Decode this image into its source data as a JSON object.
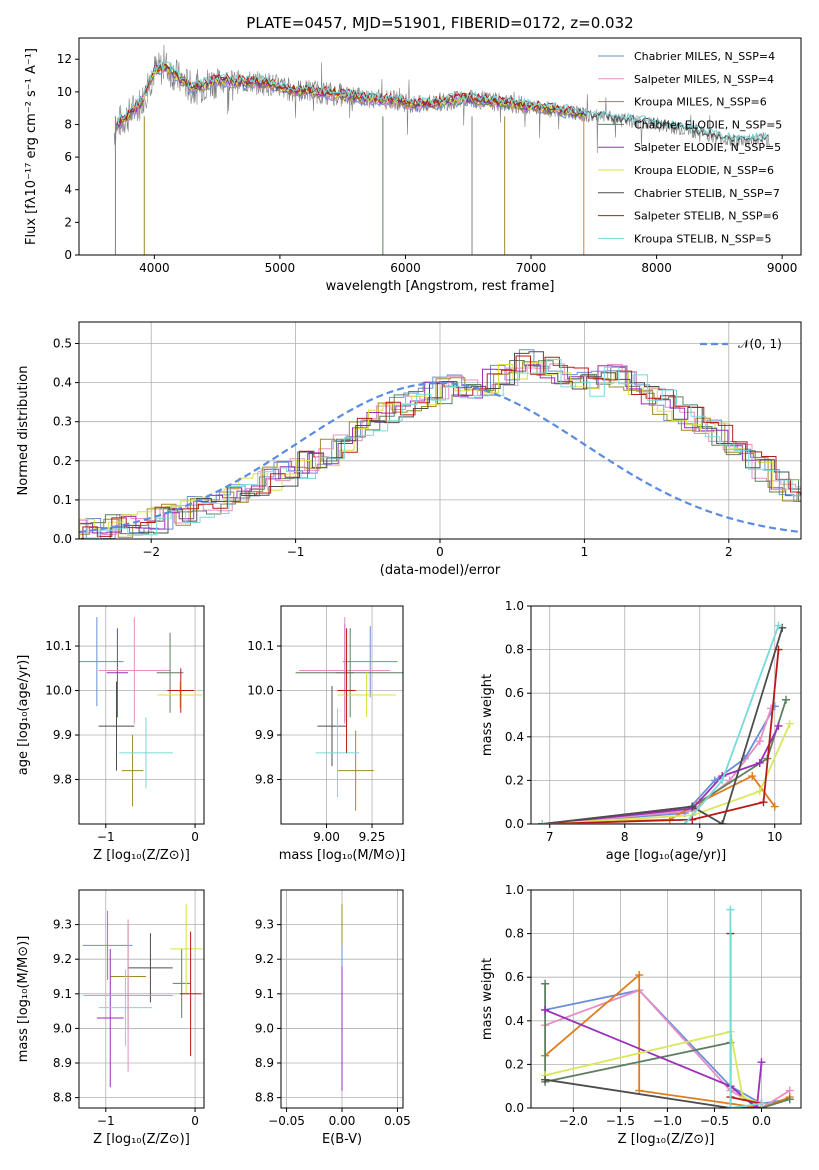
{
  "colors": [
    "#6a8fd8",
    "#e68fc4",
    "#a0892a",
    "#5e8060",
    "#9a2fb8",
    "#d9e040",
    "#4d4d4d",
    "#b81a1a",
    "#78dada"
  ],
  "chart_data": [
    {
      "id": "spectrum",
      "type": "line",
      "title": "PLATE=0457, MJD=51901, FIBERID=0172, z=0.032",
      "xlabel": "wavelength [Angstrom, rest frame]",
      "ylabel": "Flux [fλ10⁻¹⁷ erg cm⁻² s⁻¹ A⁻¹]",
      "xlim": [
        3400,
        9150
      ],
      "ylim": [
        0,
        13.3
      ],
      "xticks": [
        "4000",
        "5000",
        "6000",
        "7000",
        "8000",
        "9000"
      ],
      "yticks": [
        "0",
        "2",
        "4",
        "6",
        "8",
        "10",
        "12"
      ],
      "legend_position": "top-right",
      "series": [
        {
          "name": "Chabrier MILES, N_SSP=4"
        },
        {
          "name": "Salpeter MILES, N_SSP=4"
        },
        {
          "name": "Kroupa MILES, N_SSP=6"
        },
        {
          "name": "Chabrier ELODIE, N_SSP=5"
        },
        {
          "name": "Salpeter ELODIE, N_SSP=5"
        },
        {
          "name": "Kroupa ELODIE, N_SSP=6"
        },
        {
          "name": "Chabrier STELIB, N_SSP=7"
        },
        {
          "name": "Salpeter STELIB, N_SSP=6"
        },
        {
          "name": "Kroupa STELIB, N_SSP=5"
        }
      ],
      "data_spectrum": {
        "x": [
          3680,
          3700,
          3800,
          3900,
          4000,
          4100,
          4200,
          4300,
          4500,
          4700,
          4900,
          5100,
          5300,
          5500,
          5700,
          5900,
          6100,
          6300,
          6500,
          6700,
          6900,
          7100,
          7300,
          7420
        ],
        "y": [
          7.5,
          8.0,
          8.6,
          9.4,
          11.3,
          11.5,
          10.8,
          10.2,
          10.7,
          10.6,
          10.5,
          10.1,
          10.0,
          9.8,
          9.6,
          9.5,
          9.2,
          9.4,
          9.6,
          9.4,
          9.2,
          9.0,
          8.8,
          8.6
        ]
      },
      "model_end": 7420,
      "models_tail": {
        "x": [
          7420,
          7700,
          8000,
          8300,
          8600,
          8900
        ],
        "y": [
          8.6,
          8.3,
          8.0,
          7.6,
          7.0,
          7.1
        ]
      }
    },
    {
      "id": "residual-hist",
      "type": "histogram",
      "xlabel": "(data-model)/error",
      "ylabel": "Normed distribution",
      "xlim": [
        -2.5,
        2.5
      ],
      "ylim": [
        0,
        0.555
      ],
      "xticks": [
        "−2",
        "−1",
        "0",
        "1",
        "2"
      ],
      "yticks": [
        "0.0",
        "0.1",
        "0.2",
        "0.3",
        "0.4",
        "0.5"
      ],
      "legend_label": "𝒩(0, 1)",
      "bin_width": 0.1,
      "base_values": [
        0.02,
        0.025,
        0.03,
        0.035,
        0.04,
        0.05,
        0.055,
        0.07,
        0.08,
        0.095,
        0.105,
        0.125,
        0.14,
        0.15,
        0.165,
        0.19,
        0.2,
        0.22,
        0.25,
        0.275,
        0.3,
        0.32,
        0.34,
        0.36,
        0.37,
        0.38,
        0.385,
        0.39,
        0.4,
        0.42,
        0.44,
        0.45,
        0.43,
        0.42,
        0.41,
        0.4,
        0.41,
        0.42,
        0.4,
        0.37,
        0.35,
        0.33,
        0.31,
        0.29,
        0.27,
        0.25,
        0.21,
        0.18,
        0.15,
        0.13,
        0.11,
        0.1,
        0.085,
        0.07,
        0.06,
        0.05,
        0.04,
        0.035,
        0.03,
        0.025,
        0.02,
        0.02
      ]
    },
    {
      "id": "age-vs-Z",
      "type": "errorbar",
      "xlabel": "Z [log₁₀(Z/Z⊙)]",
      "ylabel": "age  [log₁₀(age/yr)]",
      "xlim": [
        -1.3,
        0.1
      ],
      "ylim": [
        9.7,
        10.19
      ],
      "xticks": [
        "−1",
        "0"
      ],
      "yticks": [
        "9.8",
        "9.9",
        "10.0",
        "10.1"
      ],
      "points": [
        {
          "x": -1.1,
          "xerr": 0.3,
          "y": 10.065,
          "yerr": 0.1
        },
        {
          "x": -0.7,
          "xerr": 0.12,
          "y": 9.82,
          "yerr": 0.08
        },
        {
          "x": -0.87,
          "xerr": 0.12,
          "y": 10.04,
          "yerr": 0.1
        },
        {
          "x": -0.88,
          "xerr": 0.2,
          "y": 9.92,
          "yerr": 0.1
        },
        {
          "x": -0.55,
          "xerr": 0.3,
          "y": 9.86,
          "yerr": 0.08
        },
        {
          "x": -0.68,
          "xerr": 0.4,
          "y": 10.045,
          "yerr": 0.12
        },
        {
          "x": -0.28,
          "xerr": 0.15,
          "y": 10.04,
          "yerr": 0.09
        },
        {
          "x": -0.17,
          "xerr": 0.25,
          "y": 9.99,
          "yerr": 0.03
        },
        {
          "x": -0.16,
          "xerr": 0.15,
          "y": 10.0,
          "yerr": 0.05
        }
      ]
    },
    {
      "id": "age-vs-mass",
      "type": "errorbar",
      "xlabel": "mass [log₁₀(M/M⊙)]",
      "ylabel": "",
      "xlim": [
        8.75,
        9.42
      ],
      "ylim": [
        9.7,
        10.19
      ],
      "xticks": [
        "9.00",
        "9.25"
      ],
      "yticks": [
        "9.8",
        "9.9",
        "10.0",
        "10.1"
      ],
      "points": [
        {
          "x": 9.24,
          "xerr": 0.15,
          "y": 10.065,
          "yerr": 0.08
        },
        {
          "x": 9.16,
          "xerr": 0.1,
          "y": 9.82,
          "yerr": 0.09
        },
        {
          "x": 9.1,
          "xerr": 0.05,
          "y": 10.04,
          "yerr": 0.11
        },
        {
          "x": 9.03,
          "xerr": 0.08,
          "y": 9.92,
          "yerr": 0.09
        },
        {
          "x": 9.06,
          "xerr": 0.12,
          "y": 9.86,
          "yerr": 0.1
        },
        {
          "x": 9.1,
          "xerr": 0.25,
          "y": 10.045,
          "yerr": 0.12
        },
        {
          "x": 9.13,
          "xerr": 0.3,
          "y": 10.04,
          "yerr": 0.1
        },
        {
          "x": 9.22,
          "xerr": 0.16,
          "y": 9.99,
          "yerr": 0.05
        },
        {
          "x": 9.11,
          "xerr": 0.05,
          "y": 10.0,
          "yerr": 0.14
        }
      ]
    },
    {
      "id": "weight-vs-age",
      "type": "line",
      "xlabel": "age  [log₁₀(age/yr)]",
      "ylabel": "mass weight",
      "xlim": [
        6.75,
        10.35
      ],
      "ylim": [
        0,
        1.0
      ],
      "xticks": [
        "7",
        "8",
        "9",
        "10"
      ],
      "yticks": [
        "0.0",
        "0.2",
        "0.4",
        "0.6",
        "0.8",
        "1.0"
      ],
      "series": [
        {
          "x": [
            6.9,
            8.8,
            9.2,
            9.6,
            10.0
          ],
          "y": [
            0.0,
            0.05,
            0.2,
            0.3,
            0.54
          ]
        },
        {
          "x": [
            6.9,
            8.9,
            9.4,
            9.8,
            9.95
          ],
          "y": [
            0.0,
            0.06,
            0.2,
            0.38,
            0.53
          ]
        },
        {
          "x": [
            6.9,
            8.6,
            9.0,
            9.7,
            10.0
          ],
          "y": [
            0.0,
            0.02,
            0.1,
            0.22,
            0.08
          ]
        },
        {
          "x": [
            6.9,
            8.9,
            9.9,
            10.15
          ],
          "y": [
            0.0,
            0.08,
            0.3,
            0.57
          ]
        },
        {
          "x": [
            6.9,
            8.9,
            9.3,
            9.8,
            10.05
          ],
          "y": [
            0.0,
            0.07,
            0.22,
            0.28,
            0.45
          ]
        },
        {
          "x": [
            6.9,
            8.9,
            9.8,
            10.2
          ],
          "y": [
            0.0,
            0.04,
            0.15,
            0.46
          ]
        },
        {
          "x": [
            6.9,
            8.9,
            9.3,
            10.1
          ],
          "y": [
            0.0,
            0.08,
            0.0,
            0.9
          ]
        },
        {
          "x": [
            6.9,
            8.9,
            9.85,
            10.05
          ],
          "y": [
            0.0,
            0.02,
            0.1,
            0.8
          ]
        },
        {
          "x": [
            6.9,
            8.8,
            9.3,
            10.05
          ],
          "y": [
            0.0,
            0.0,
            0.2,
            0.91
          ]
        }
      ]
    },
    {
      "id": "mass-vs-Z",
      "type": "errorbar",
      "xlabel": "Z [log₁₀(Z/Z⊙)]",
      "ylabel": "mass [log₁₀(M/M⊙)]",
      "xlim": [
        -1.3,
        0.1
      ],
      "ylim": [
        8.77,
        9.4
      ],
      "xticks": [
        "−1",
        "0"
      ],
      "yticks": [
        "8.8",
        "8.9",
        "9.0",
        "9.1",
        "9.2",
        "9.3"
      ],
      "points": [
        {
          "x": -0.98,
          "xerr": 0.28,
          "y": 9.24,
          "yerr": 0.1
        },
        {
          "x": -0.75,
          "xerr": 0.2,
          "y": 9.15,
          "yerr": 0.15
        },
        {
          "x": -0.95,
          "xerr": 0.15,
          "y": 9.03,
          "yerr": 0.2
        },
        {
          "x": -0.5,
          "xerr": 0.25,
          "y": 9.175,
          "yerr": 0.1
        },
        {
          "x": -0.78,
          "xerr": 0.3,
          "y": 9.06,
          "yerr": 0.11
        },
        {
          "x": -0.75,
          "xerr": 0.5,
          "y": 9.095,
          "yerr": 0.22
        },
        {
          "x": -0.15,
          "xerr": 0.1,
          "y": 9.13,
          "yerr": 0.1
        },
        {
          "x": -0.1,
          "xerr": 0.18,
          "y": 9.23,
          "yerr": 0.13
        },
        {
          "x": -0.05,
          "xerr": 0.12,
          "y": 9.1,
          "yerr": 0.18
        }
      ]
    },
    {
      "id": "mass-vs-EBV",
      "type": "errorbar",
      "xlabel": "E(B-V)",
      "ylabel": "",
      "xlim": [
        -0.055,
        0.055
      ],
      "ylim": [
        8.77,
        9.4
      ],
      "xticks": [
        "−0.05",
        "0.00",
        "0.05"
      ],
      "yticks": [
        "8.8",
        "8.9",
        "9.0",
        "9.1",
        "9.2",
        "9.3"
      ],
      "points": [
        {
          "x": 0.0,
          "xerr": 0.0,
          "y": 9.2,
          "yerr": 0.1
        },
        {
          "x": 0.0,
          "xerr": 0.0,
          "y": 9.05,
          "yerr": 0.2
        },
        {
          "x": 0.0,
          "xerr": 0.0,
          "y": 9.3,
          "yerr": 0.06
        },
        {
          "x": 0.0,
          "xerr": 0.0,
          "y": 9.0,
          "yerr": 0.18
        }
      ]
    },
    {
      "id": "weight-vs-Z",
      "type": "line",
      "xlabel": "Z [log₁₀(Z/Z⊙)]",
      "ylabel": "mass weight",
      "xlim": [
        -2.45,
        0.42
      ],
      "ylim": [
        0,
        1.0
      ],
      "xticks": [
        "−2.0",
        "−1.5",
        "−1.0",
        "−0.5",
        "0.0"
      ],
      "yticks": [
        "0.0",
        "0.2",
        "0.4",
        "0.6",
        "0.8",
        "1.0"
      ],
      "series": [
        {
          "x": [
            -2.3,
            -1.3,
            -0.33,
            0.0,
            0.3
          ],
          "y": [
            0.45,
            0.54,
            0.1,
            0.02,
            0.04
          ]
        },
        {
          "x": [
            -2.3,
            -1.3,
            -0.33,
            0.0,
            0.3
          ],
          "y": [
            0.38,
            0.54,
            0.08,
            0.0,
            0.08
          ]
        },
        {
          "x": [
            -2.3,
            -1.3,
            -1.3,
            -0.33,
            0.0,
            0.3
          ],
          "y": [
            0.24,
            0.61,
            0.08,
            0.02,
            0.0,
            0.05
          ]
        },
        {
          "x": [
            -2.3,
            -2.3,
            -0.33,
            -0.33,
            0.0,
            0.3
          ],
          "y": [
            0.57,
            0.12,
            0.3,
            0.0,
            0.0,
            0.04
          ]
        },
        {
          "x": [
            -2.3,
            -0.33,
            -0.05,
            0.0
          ],
          "y": [
            0.45,
            0.1,
            0.0,
            0.21
          ]
        },
        {
          "x": [
            -2.3,
            -0.33,
            -0.2,
            0.0
          ],
          "y": [
            0.15,
            0.35,
            0.05,
            0.02
          ]
        },
        {
          "x": [
            -2.3,
            -0.33,
            0.0
          ],
          "y": [
            0.13,
            0.0,
            0.0
          ]
        },
        {
          "x": [
            -0.33,
            -0.33,
            0.0
          ],
          "y": [
            0.8,
            0.05,
            0.02
          ]
        },
        {
          "x": [
            -0.33,
            -0.33,
            0.0
          ],
          "y": [
            0.91,
            0.0,
            0.02
          ]
        }
      ]
    }
  ]
}
